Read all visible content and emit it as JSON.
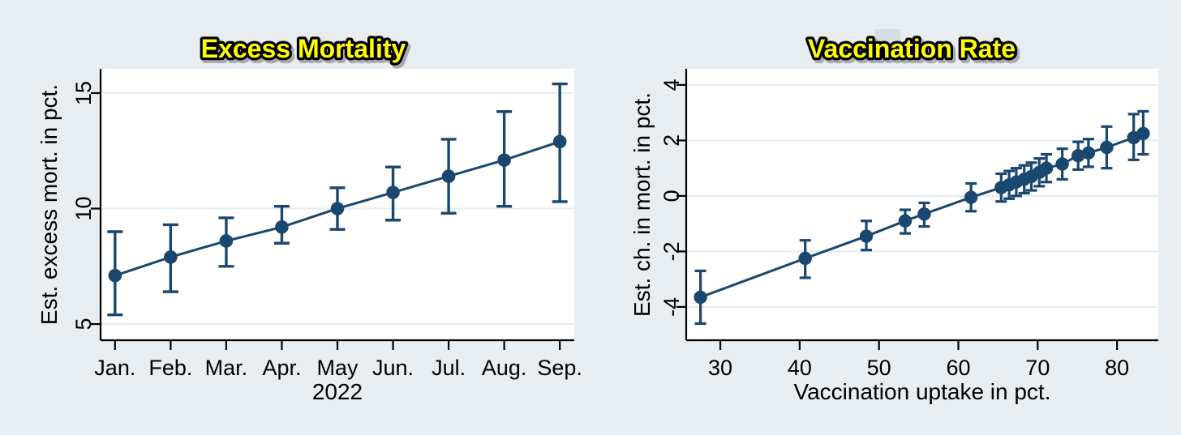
{
  "figure": {
    "background": "#e8edf1",
    "plot_background": "#ffffff",
    "accent": "#1a476f",
    "grid_color": "#e2ecf1",
    "axis_color": "#000000",
    "text_color": "#000000",
    "title_fill": "#ffff00",
    "title_outline": "#000000",
    "artifact_color": "#c5cfd6"
  },
  "chart_data": [
    {
      "type": "scatter",
      "title": "Excess Mortality",
      "xlabel": "2022",
      "ylabel": "Est. excess mort. in pct.",
      "x_tick_labels": [
        "Jan.",
        "Feb.",
        "Mar.",
        "Apr.",
        "May",
        "Jun.",
        "Jul.",
        "Aug.",
        "Sep."
      ],
      "x": [
        1,
        2,
        3,
        4,
        5,
        6,
        7,
        8,
        9
      ],
      "y": [
        7.1,
        7.9,
        8.6,
        9.2,
        10.0,
        10.7,
        11.4,
        12.1,
        12.9
      ],
      "ci_low": [
        5.4,
        6.4,
        7.5,
        8.5,
        9.1,
        9.5,
        9.8,
        10.1,
        10.3
      ],
      "ci_high": [
        9.0,
        9.3,
        9.6,
        10.1,
        10.9,
        11.8,
        13.0,
        14.2,
        15.4
      ],
      "yticks": [
        5,
        10,
        15
      ],
      "xlim": [
        0.74,
        9.26
      ],
      "ylim": [
        4.3,
        16.05
      ],
      "grid": "horizontal",
      "legend": "none",
      "marker_line": true
    },
    {
      "type": "scatter",
      "title": "Vaccination Rate",
      "xlabel": "Vaccination uptake in pct.",
      "ylabel": "Est. ch. in mort. in pct.",
      "x": [
        27.5,
        40.7,
        48.4,
        53.3,
        55.7,
        61.6,
        65.4,
        66.4,
        67.3,
        68.3,
        69.2,
        70.2,
        71.1,
        73.1,
        75.1,
        76.4,
        78.7,
        82.1,
        83.3
      ],
      "y": [
        -3.65,
        -2.25,
        -1.45,
        -0.9,
        -0.65,
        -0.05,
        0.3,
        0.4,
        0.5,
        0.6,
        0.7,
        0.85,
        1.0,
        1.15,
        1.45,
        1.55,
        1.75,
        2.1,
        2.25
      ],
      "ci_low": [
        -4.6,
        -2.95,
        -1.95,
        -1.35,
        -1.1,
        -0.55,
        -0.2,
        -0.1,
        0.0,
        0.1,
        0.2,
        0.35,
        0.5,
        0.6,
        0.95,
        1.05,
        1.0,
        1.3,
        1.5
      ],
      "ci_high": [
        -2.7,
        -1.6,
        -0.9,
        -0.5,
        -0.25,
        0.45,
        0.8,
        0.9,
        1.0,
        1.1,
        1.2,
        1.35,
        1.5,
        1.7,
        1.95,
        2.05,
        2.5,
        2.95,
        3.05
      ],
      "xticks": [
        30,
        40,
        50,
        60,
        70,
        80
      ],
      "yticks": [
        -4,
        -2,
        0,
        2,
        4
      ],
      "xlim": [
        25.7,
        85.2
      ],
      "ylim": [
        -5.2,
        4.58
      ],
      "grid": "horizontal",
      "legend": "none",
      "marker_line": true
    }
  ]
}
